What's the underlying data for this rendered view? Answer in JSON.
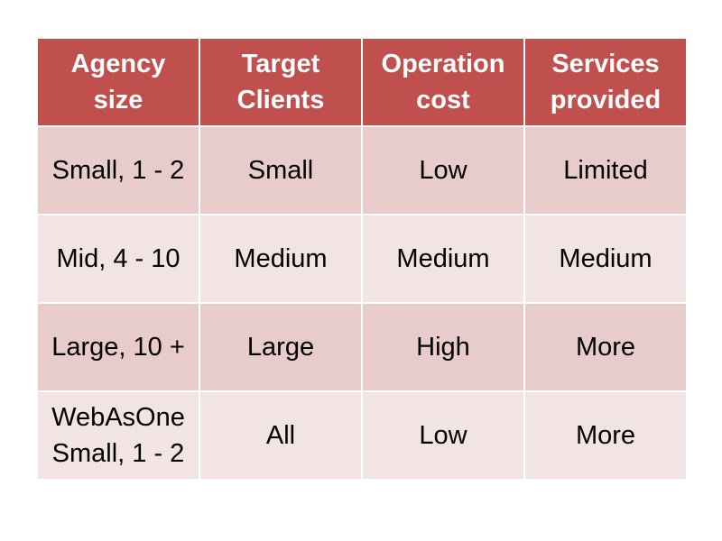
{
  "table": {
    "headers": [
      "Agency\nsize",
      "Target\nClients",
      "Operation\ncost",
      "Services\nprovided"
    ],
    "rows": [
      [
        "Small, 1 - 2",
        "Small",
        "Low",
        "Limited"
      ],
      [
        "Mid, 4 - 10",
        "Medium",
        "Medium",
        "Medium"
      ],
      [
        "Large, 10 +",
        "Large",
        "High",
        "More"
      ],
      [
        "WebAsOne\nSmall, 1 - 2",
        "All",
        "Low",
        "More"
      ]
    ]
  },
  "colors": {
    "header_bg": "#c0504d",
    "header_text": "#ffffff",
    "row_odd_bg": "#e8cccc",
    "row_even_bg": "#f3e4e4"
  }
}
